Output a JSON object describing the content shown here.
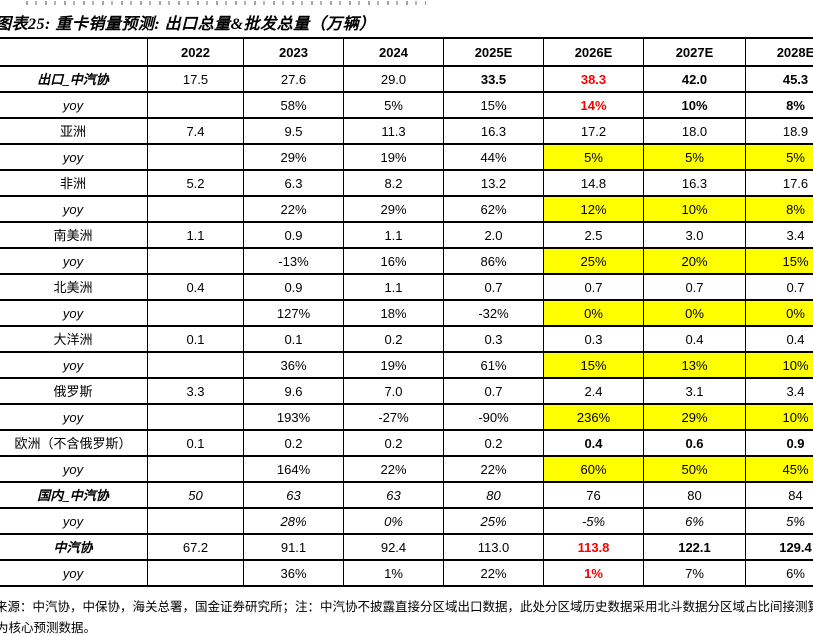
{
  "page": {
    "title": "图表25: 重卡销量预测: 出口总量&批发总量（万辆）",
    "footnote_line1": "来源：中汽协，中保协，海关总署，国金证券研究所；注：中汽协不披露直接分区域出口数据，此处分区域历史数据采用北斗数据分区域占比间接测算得出",
    "footnote_line2": "为核心预测数据。"
  },
  "colors": {
    "highlight_yellow": "#FFFF00",
    "alert_red": "#FF0000",
    "border_black": "#000000"
  },
  "table": {
    "columns": [
      "",
      "2022",
      "2023",
      "2024",
      "2025E",
      "2026E",
      "2027E",
      "2028E"
    ],
    "rows": [
      {
        "label": "出口_中汽协",
        "label_style": "bold-italic",
        "cells": [
          {
            "t": "17.5"
          },
          {
            "t": "27.6"
          },
          {
            "t": "29.0"
          },
          {
            "t": "33.5",
            "b": 1
          },
          {
            "t": "38.3",
            "b": 1,
            "red": 1
          },
          {
            "t": "42.0",
            "b": 1
          },
          {
            "t": "45.3",
            "b": 1
          }
        ]
      },
      {
        "label": "yoy",
        "label_style": "italic",
        "cells": [
          {
            "t": ""
          },
          {
            "t": "58%"
          },
          {
            "t": "5%"
          },
          {
            "t": "15%"
          },
          {
            "t": "14%",
            "b": 1,
            "red": 1
          },
          {
            "t": "10%",
            "b": 1
          },
          {
            "t": "8%",
            "b": 1
          }
        ]
      },
      {
        "label": "亚洲",
        "label_style": "plain",
        "cells": [
          {
            "t": "7.4"
          },
          {
            "t": "9.5"
          },
          {
            "t": "11.3"
          },
          {
            "t": "16.3"
          },
          {
            "t": "17.2"
          },
          {
            "t": "18.0"
          },
          {
            "t": "18.9"
          }
        ]
      },
      {
        "label": "yoy",
        "label_style": "italic",
        "cells": [
          {
            "t": ""
          },
          {
            "t": "29%"
          },
          {
            "t": "19%"
          },
          {
            "t": "44%"
          },
          {
            "t": "5%",
            "y": 1
          },
          {
            "t": "5%",
            "y": 1
          },
          {
            "t": "5%",
            "y": 1
          }
        ]
      },
      {
        "label": "非洲",
        "label_style": "plain",
        "cells": [
          {
            "t": "5.2"
          },
          {
            "t": "6.3"
          },
          {
            "t": "8.2"
          },
          {
            "t": "13.2"
          },
          {
            "t": "14.8"
          },
          {
            "t": "16.3"
          },
          {
            "t": "17.6"
          }
        ]
      },
      {
        "label": "yoy",
        "label_style": "italic",
        "cells": [
          {
            "t": ""
          },
          {
            "t": "22%"
          },
          {
            "t": "29%"
          },
          {
            "t": "62%"
          },
          {
            "t": "12%",
            "y": 1
          },
          {
            "t": "10%",
            "y": 1
          },
          {
            "t": "8%",
            "y": 1
          }
        ]
      },
      {
        "label": "南美洲",
        "label_style": "plain",
        "cells": [
          {
            "t": "1.1"
          },
          {
            "t": "0.9"
          },
          {
            "t": "1.1"
          },
          {
            "t": "2.0"
          },
          {
            "t": "2.5"
          },
          {
            "t": "3.0"
          },
          {
            "t": "3.4"
          }
        ]
      },
      {
        "label": "yoy",
        "label_style": "italic",
        "cells": [
          {
            "t": ""
          },
          {
            "t": "-13%"
          },
          {
            "t": "16%"
          },
          {
            "t": "86%"
          },
          {
            "t": "25%",
            "y": 1
          },
          {
            "t": "20%",
            "y": 1
          },
          {
            "t": "15%",
            "y": 1
          }
        ]
      },
      {
        "label": "北美洲",
        "label_style": "plain",
        "cells": [
          {
            "t": "0.4"
          },
          {
            "t": "0.9"
          },
          {
            "t": "1.1"
          },
          {
            "t": "0.7"
          },
          {
            "t": "0.7"
          },
          {
            "t": "0.7"
          },
          {
            "t": "0.7"
          }
        ]
      },
      {
        "label": "yoy",
        "label_style": "italic",
        "cells": [
          {
            "t": ""
          },
          {
            "t": "127%"
          },
          {
            "t": "18%"
          },
          {
            "t": "-32%"
          },
          {
            "t": "0%",
            "y": 1
          },
          {
            "t": "0%",
            "y": 1
          },
          {
            "t": "0%",
            "y": 1
          }
        ]
      },
      {
        "label": "大洋洲",
        "label_style": "plain",
        "cells": [
          {
            "t": "0.1"
          },
          {
            "t": "0.1"
          },
          {
            "t": "0.2"
          },
          {
            "t": "0.3"
          },
          {
            "t": "0.3"
          },
          {
            "t": "0.4"
          },
          {
            "t": "0.4"
          }
        ]
      },
      {
        "label": "yoy",
        "label_style": "italic",
        "cells": [
          {
            "t": ""
          },
          {
            "t": "36%"
          },
          {
            "t": "19%"
          },
          {
            "t": "61%"
          },
          {
            "t": "15%",
            "y": 1
          },
          {
            "t": "13%",
            "y": 1
          },
          {
            "t": "10%",
            "y": 1
          }
        ]
      },
      {
        "label": "俄罗斯",
        "label_style": "plain",
        "cells": [
          {
            "t": "3.3"
          },
          {
            "t": "9.6"
          },
          {
            "t": "7.0"
          },
          {
            "t": "0.7"
          },
          {
            "t": "2.4"
          },
          {
            "t": "3.1"
          },
          {
            "t": "3.4"
          }
        ]
      },
      {
        "label": "yoy",
        "label_style": "italic",
        "cells": [
          {
            "t": ""
          },
          {
            "t": "193%"
          },
          {
            "t": "-27%"
          },
          {
            "t": "-90%"
          },
          {
            "t": "236%",
            "y": 1
          },
          {
            "t": "29%",
            "y": 1
          },
          {
            "t": "10%",
            "y": 1
          }
        ]
      },
      {
        "label": "欧洲（不含俄罗斯）",
        "label_style": "plain",
        "cells": [
          {
            "t": "0.1"
          },
          {
            "t": "0.2"
          },
          {
            "t": "0.2"
          },
          {
            "t": "0.2"
          },
          {
            "t": "0.4",
            "b": 1
          },
          {
            "t": "0.6",
            "b": 1
          },
          {
            "t": "0.9",
            "b": 1
          }
        ]
      },
      {
        "label": "yoy",
        "label_style": "italic",
        "cells": [
          {
            "t": ""
          },
          {
            "t": "164%"
          },
          {
            "t": "22%"
          },
          {
            "t": "22%"
          },
          {
            "t": "60%",
            "y": 1
          },
          {
            "t": "50%",
            "y": 1
          },
          {
            "t": "45%",
            "y": 1
          }
        ]
      },
      {
        "label": "国内_中汽协",
        "label_style": "bold-italic",
        "cells": [
          {
            "t": "50",
            "i": 1
          },
          {
            "t": "63",
            "i": 1
          },
          {
            "t": "63",
            "i": 1
          },
          {
            "t": "80",
            "i": 1
          },
          {
            "t": "76"
          },
          {
            "t": "80"
          },
          {
            "t": "84"
          }
        ]
      },
      {
        "label": "yoy",
        "label_style": "italic",
        "cells": [
          {
            "t": ""
          },
          {
            "t": "28%",
            "i": 1
          },
          {
            "t": "0%",
            "i": 1
          },
          {
            "t": "25%",
            "i": 1
          },
          {
            "t": "-5%",
            "i": 1
          },
          {
            "t": "6%",
            "i": 1
          },
          {
            "t": "5%",
            "i": 1
          }
        ]
      },
      {
        "label": "中汽协",
        "label_style": "bold-italic",
        "cells": [
          {
            "t": "67.2"
          },
          {
            "t": "91.1"
          },
          {
            "t": "92.4"
          },
          {
            "t": "113.0"
          },
          {
            "t": "113.8",
            "b": 1,
            "red": 1
          },
          {
            "t": "122.1",
            "b": 1
          },
          {
            "t": "129.4",
            "b": 1
          }
        ]
      },
      {
        "label": "yoy",
        "label_style": "italic",
        "cells": [
          {
            "t": ""
          },
          {
            "t": "36%"
          },
          {
            "t": "1%"
          },
          {
            "t": "22%"
          },
          {
            "t": "1%",
            "b": 1,
            "red": 1
          },
          {
            "t": "7%"
          },
          {
            "t": "6%"
          }
        ]
      }
    ]
  }
}
